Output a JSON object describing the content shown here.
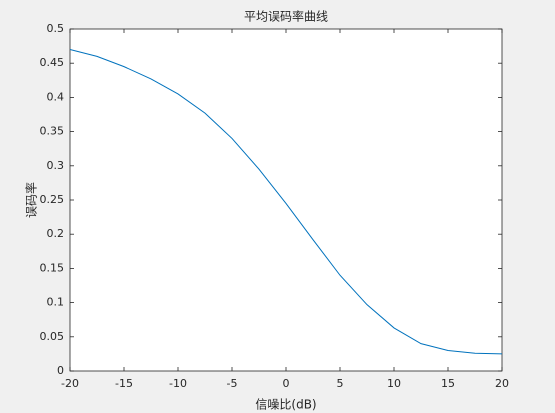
{
  "chart_data": {
    "type": "line",
    "title": "平均误码率曲线",
    "x_label": "信噪比(dB)",
    "y_label": "误码率",
    "x": [
      -20,
      -17.5,
      -15,
      -12.5,
      -10,
      -7.5,
      -5,
      -2.5,
      0,
      2.5,
      5,
      7.5,
      10,
      12.5,
      15,
      17.5,
      20
    ],
    "series": [
      {
        "name": "误码率",
        "color": "#0072bd",
        "values": [
          0.47,
          0.46,
          0.445,
          0.427,
          0.405,
          0.377,
          0.34,
          0.295,
          0.245,
          0.192,
          0.14,
          0.097,
          0.063,
          0.04,
          0.03,
          0.026,
          0.025
        ]
      }
    ],
    "xlim": [
      -20,
      20
    ],
    "xticks": [
      -20,
      -15,
      -10,
      -5,
      0,
      5,
      10,
      15,
      20
    ],
    "ylim": [
      0,
      0.5
    ],
    "yticks": [
      0,
      0.05,
      0.1,
      0.15,
      0.2,
      0.25,
      0.3,
      0.35,
      0.4,
      0.45,
      0.5
    ],
    "grid": false
  }
}
